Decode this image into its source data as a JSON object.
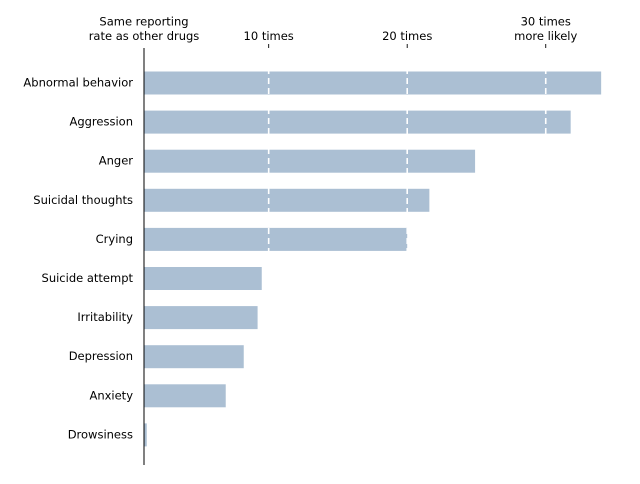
{
  "chart_data": {
    "type": "bar",
    "orientation": "horizontal",
    "title": "",
    "xlabel": "",
    "ylabel": "",
    "categories": [
      "Abnormal behavior",
      "Aggression",
      "Anger",
      "Suicidal thoughts",
      "Crying",
      "Suicide attempt",
      "Irritability",
      "Depression",
      "Anxiety",
      "Drowsiness"
    ],
    "values": [
      34,
      31.8,
      24.9,
      21.6,
      20,
      9.5,
      9.2,
      8.2,
      6.9,
      1.2
    ],
    "xlim": [
      1,
      35
    ],
    "top_axis_ticks": [
      {
        "value": 1,
        "label_lines": [
          "Same reporting",
          "rate as other drugs"
        ]
      },
      {
        "value": 10,
        "label_lines": [
          "10 times"
        ]
      },
      {
        "value": 20,
        "label_lines": [
          "20 times"
        ]
      },
      {
        "value": 30,
        "label_lines": [
          "30 times",
          "more likely"
        ]
      }
    ],
    "gridlines": [
      10,
      20,
      30
    ],
    "gridline_style": "dashed white",
    "bar_color": "#abbfd3",
    "axis_line": "left baseline at x = 1",
    "legend": "none"
  }
}
